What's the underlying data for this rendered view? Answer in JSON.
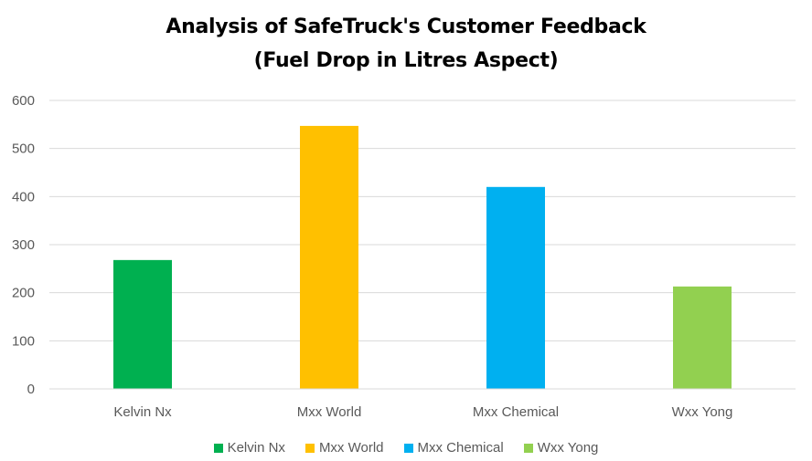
{
  "title": {
    "line1": "Analysis of SafeTruck's Customer Feedback",
    "line2": "(Fuel Drop in Litres Aspect)"
  },
  "chart_data": {
    "type": "bar",
    "title": "Analysis of SafeTruck's Customer Feedback (Fuel Drop in Litres Aspect)",
    "categories": [
      "Kelvin Nx",
      "Mxx World",
      "Mxx Chemical",
      "Wxx Yong"
    ],
    "values": [
      268,
      547,
      420,
      213
    ],
    "colors": [
      "#00B050",
      "#FFC000",
      "#00B0F0",
      "#92D050"
    ],
    "ylim": [
      0,
      600
    ],
    "yticks": [
      0,
      100,
      200,
      300,
      400,
      500,
      600
    ],
    "grid": true,
    "legend_position": "bottom",
    "legend": [
      "Kelvin Nx",
      "Mxx World",
      "Mxx Chemical",
      "Wxx Yong"
    ],
    "gridline_color": "#D9D9D9"
  }
}
